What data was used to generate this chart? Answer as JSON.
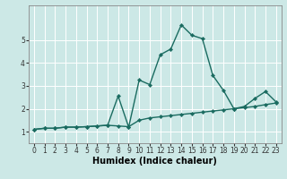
{
  "title": "",
  "xlabel": "Humidex (Indice chaleur)",
  "ylabel": "",
  "background_color": "#cce8e6",
  "grid_color": "#ffffff",
  "line_color": "#1a6b60",
  "marker_color": "#1a6b60",
  "x": [
    0,
    1,
    2,
    3,
    4,
    5,
    6,
    7,
    8,
    9,
    10,
    11,
    12,
    13,
    14,
    15,
    16,
    17,
    18,
    19,
    20,
    21,
    22,
    23
  ],
  "y_line1": [
    1.1,
    1.15,
    1.15,
    1.2,
    1.2,
    1.22,
    1.25,
    1.28,
    1.25,
    1.22,
    1.5,
    1.6,
    1.65,
    1.7,
    1.75,
    1.8,
    1.85,
    1.9,
    1.95,
    2.0,
    2.05,
    2.1,
    2.18,
    2.25
  ],
  "y_line2": [
    1.1,
    1.15,
    1.15,
    1.2,
    1.2,
    1.22,
    1.25,
    1.28,
    2.55,
    1.2,
    3.25,
    3.05,
    4.35,
    4.6,
    5.65,
    5.2,
    5.05,
    3.45,
    2.8,
    2.0,
    2.1,
    2.45,
    2.75,
    2.3
  ],
  "ylim": [
    0.5,
    6.5
  ],
  "xlim": [
    -0.5,
    23.5
  ],
  "yticks": [
    1,
    2,
    3,
    4,
    5
  ],
  "xticks": [
    0,
    1,
    2,
    3,
    4,
    5,
    6,
    7,
    8,
    9,
    10,
    11,
    12,
    13,
    14,
    15,
    16,
    17,
    18,
    19,
    20,
    21,
    22,
    23
  ],
  "tick_fontsize": 5.5,
  "xlabel_fontsize": 7,
  "line_width": 1.0,
  "marker_size": 2.2
}
